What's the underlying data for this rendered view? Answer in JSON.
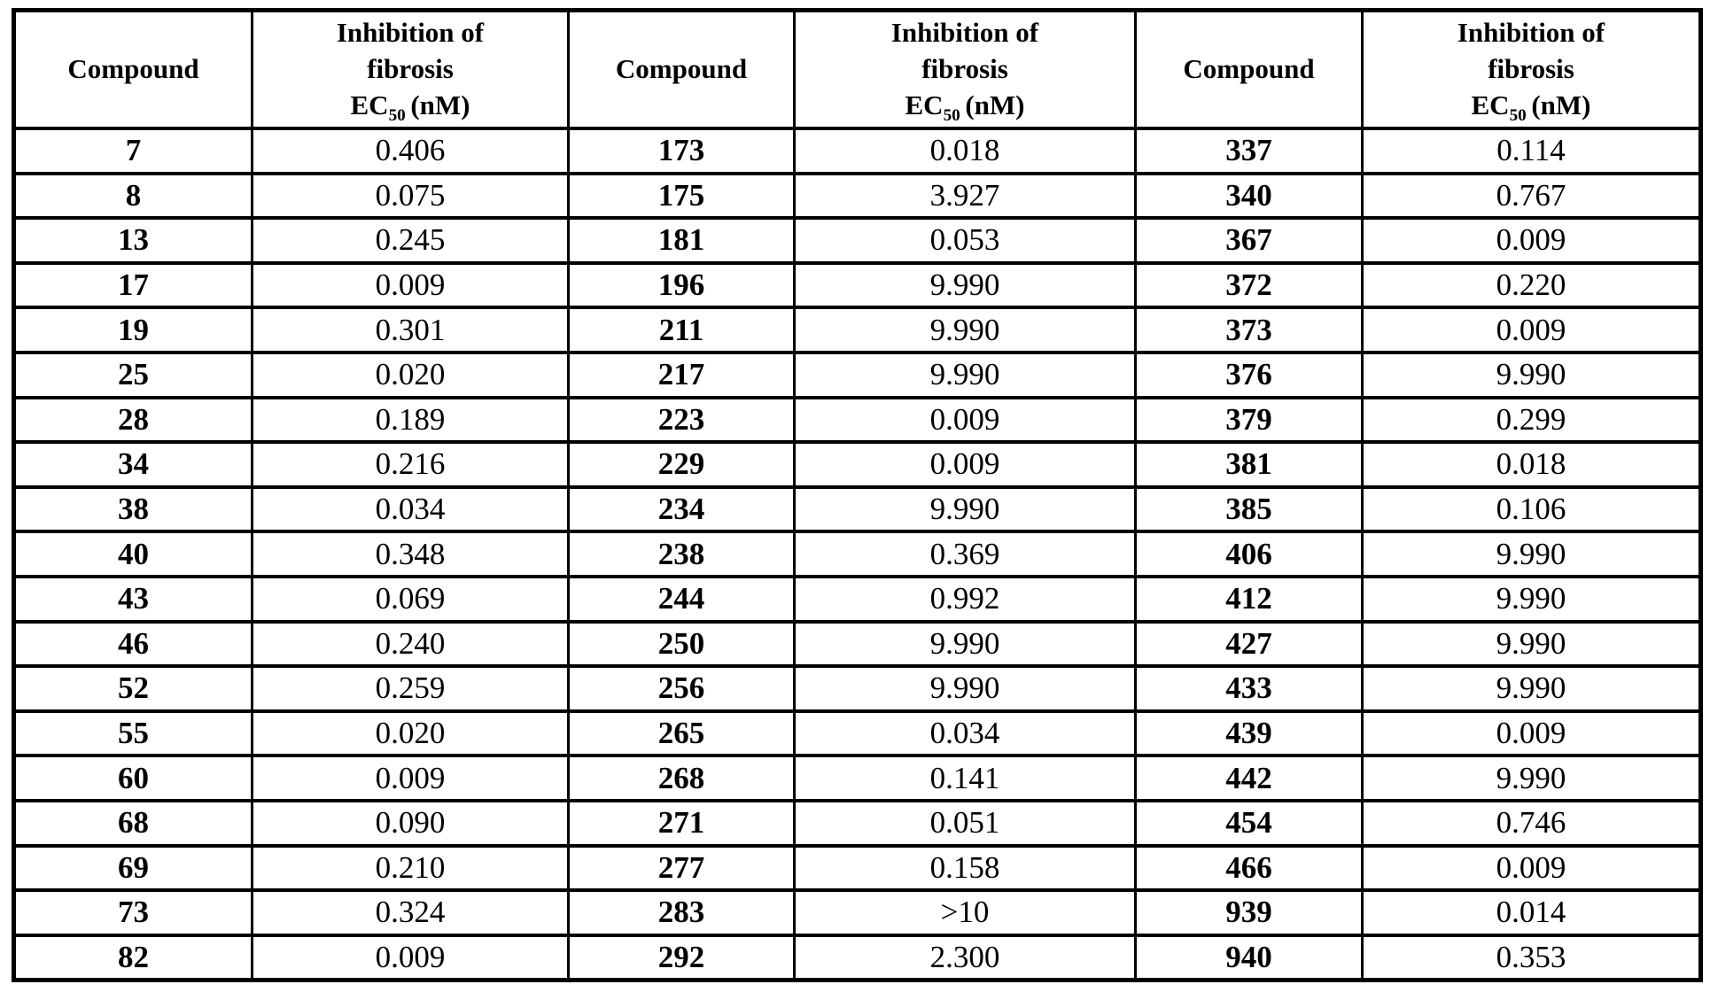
{
  "page": {
    "background": "#ffffff",
    "border_color": "#000000",
    "text_color": "#000000"
  },
  "table": {
    "column_headers": {
      "compound": "Compound",
      "ec50": {
        "line1": "Inhibition of",
        "line2": "fibrosis",
        "prefix": "EC",
        "subscript": "50",
        "suffix": "(nM)"
      }
    },
    "groups": [
      {
        "rows": [
          {
            "compound": "7",
            "ec50": "0.406"
          },
          {
            "compound": "8",
            "ec50": "0.075"
          },
          {
            "compound": "13",
            "ec50": "0.245"
          },
          {
            "compound": "17",
            "ec50": "0.009"
          },
          {
            "compound": "19",
            "ec50": "0.301"
          },
          {
            "compound": "25",
            "ec50": "0.020"
          },
          {
            "compound": "28",
            "ec50": "0.189"
          },
          {
            "compound": "34",
            "ec50": "0.216"
          },
          {
            "compound": "38",
            "ec50": "0.034"
          },
          {
            "compound": "40",
            "ec50": "0.348"
          },
          {
            "compound": "43",
            "ec50": "0.069"
          },
          {
            "compound": "46",
            "ec50": "0.240"
          },
          {
            "compound": "52",
            "ec50": "0.259"
          },
          {
            "compound": "55",
            "ec50": "0.020"
          },
          {
            "compound": "60",
            "ec50": "0.009"
          },
          {
            "compound": "68",
            "ec50": "0.090"
          },
          {
            "compound": "69",
            "ec50": "0.210"
          },
          {
            "compound": "73",
            "ec50": "0.324"
          },
          {
            "compound": "82",
            "ec50": "0.009"
          }
        ]
      },
      {
        "rows": [
          {
            "compound": "173",
            "ec50": "0.018"
          },
          {
            "compound": "175",
            "ec50": "3.927"
          },
          {
            "compound": "181",
            "ec50": "0.053"
          },
          {
            "compound": "196",
            "ec50": "9.990"
          },
          {
            "compound": "211",
            "ec50": "9.990"
          },
          {
            "compound": "217",
            "ec50": "9.990"
          },
          {
            "compound": "223",
            "ec50": "0.009"
          },
          {
            "compound": "229",
            "ec50": "0.009"
          },
          {
            "compound": "234",
            "ec50": "9.990"
          },
          {
            "compound": "238",
            "ec50": "0.369"
          },
          {
            "compound": "244",
            "ec50": "0.992"
          },
          {
            "compound": "250",
            "ec50": "9.990"
          },
          {
            "compound": "256",
            "ec50": "9.990"
          },
          {
            "compound": "265",
            "ec50": "0.034"
          },
          {
            "compound": "268",
            "ec50": "0.141"
          },
          {
            "compound": "271",
            "ec50": "0.051"
          },
          {
            "compound": "277",
            "ec50": "0.158"
          },
          {
            "compound": "283",
            "ec50": ">10"
          },
          {
            "compound": "292",
            "ec50": "2.300"
          }
        ]
      },
      {
        "rows": [
          {
            "compound": "337",
            "ec50": "0.114"
          },
          {
            "compound": "340",
            "ec50": "0.767"
          },
          {
            "compound": "367",
            "ec50": "0.009"
          },
          {
            "compound": "372",
            "ec50": "0.220"
          },
          {
            "compound": "373",
            "ec50": "0.009"
          },
          {
            "compound": "376",
            "ec50": "9.990"
          },
          {
            "compound": "379",
            "ec50": "0.299"
          },
          {
            "compound": "381",
            "ec50": "0.018"
          },
          {
            "compound": "385",
            "ec50": "0.106"
          },
          {
            "compound": "406",
            "ec50": "9.990"
          },
          {
            "compound": "412",
            "ec50": "9.990"
          },
          {
            "compound": "427",
            "ec50": "9.990"
          },
          {
            "compound": "433",
            "ec50": "9.990"
          },
          {
            "compound": "439",
            "ec50": "0.009"
          },
          {
            "compound": "442",
            "ec50": "9.990"
          },
          {
            "compound": "454",
            "ec50": "0.746"
          },
          {
            "compound": "466",
            "ec50": "0.009"
          },
          {
            "compound": "939",
            "ec50": "0.014"
          },
          {
            "compound": "940",
            "ec50": "0.353"
          }
        ]
      }
    ]
  }
}
